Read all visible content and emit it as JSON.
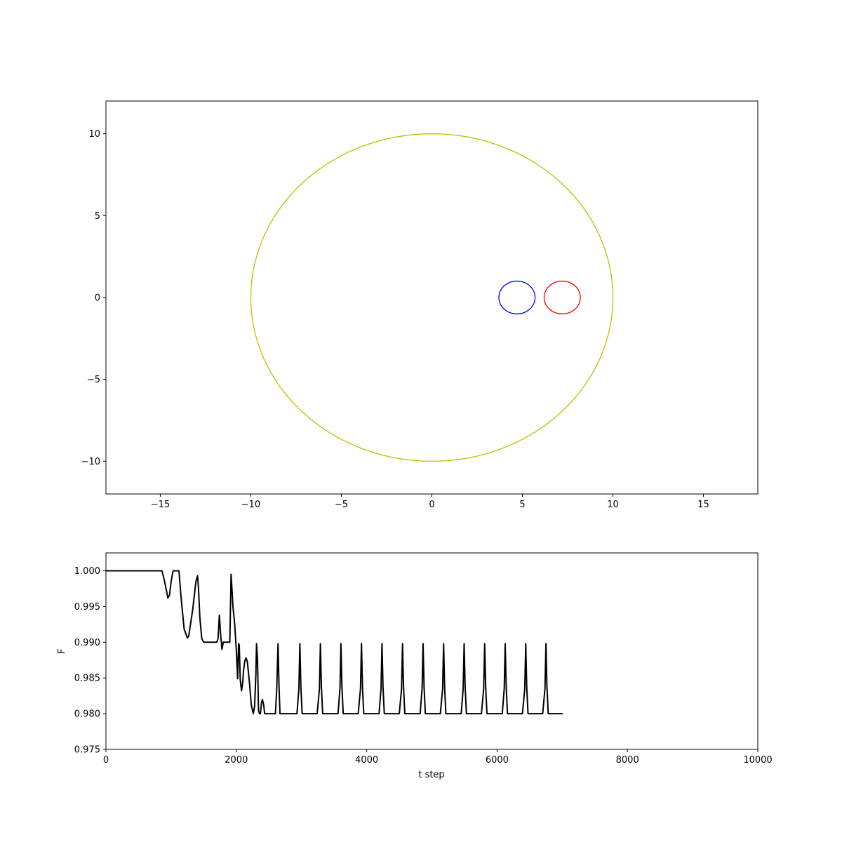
{
  "chart_data": [
    {
      "type": "line",
      "title": "",
      "xlabel": "",
      "ylabel": "",
      "xlim": [
        -18,
        18
      ],
      "ylim": [
        -12,
        12
      ],
      "aspect": "equal",
      "grid": false,
      "xticks": [
        -15,
        -10,
        -5,
        0,
        5,
        10,
        15
      ],
      "yticks": [
        -10,
        -5,
        0,
        5,
        10
      ],
      "xtick_labels": [
        "−15",
        "−10",
        "−5",
        "0",
        "5",
        "10",
        "15"
      ],
      "ytick_labels": [
        "−10",
        "−5",
        "0",
        "5",
        "10"
      ],
      "series": [
        {
          "shape": "circle",
          "cx": 0,
          "cy": 0,
          "r": 10,
          "color": "#bfbf00"
        },
        {
          "shape": "circle",
          "cx": 4.7,
          "cy": 0,
          "r": 1,
          "color": "#0000ff"
        },
        {
          "shape": "circle",
          "cx": 7.2,
          "cy": 0,
          "r": 1,
          "color": "#ff0000"
        }
      ]
    },
    {
      "type": "line",
      "title": "",
      "xlabel": "t step",
      "ylabel": "F",
      "xlim": [
        0,
        10000
      ],
      "ylim": [
        0.975,
        1.0025
      ],
      "grid": false,
      "xticks": [
        0,
        2000,
        4000,
        6000,
        8000,
        10000
      ],
      "yticks": [
        0.975,
        0.98,
        0.985,
        0.99,
        0.995,
        1.0
      ],
      "xtick_labels": [
        "0",
        "2000",
        "4000",
        "6000",
        "8000",
        "10000"
      ],
      "ytick_labels": [
        "0.975",
        "0.980",
        "0.985",
        "0.990",
        "0.995",
        "1.000"
      ],
      "series": [
        {
          "color": "#000000",
          "x": [
            0,
            860,
            900,
            950,
            975,
            1000,
            1030,
            1060,
            1120,
            1150,
            1200,
            1250,
            1270,
            1330,
            1380,
            1405,
            1420,
            1440,
            1470,
            1500,
            1700,
            1720,
            1740,
            1760,
            1780,
            1800,
            1900,
            1920,
            1950,
            1975,
            2000,
            2020,
            2035,
            2045,
            2060,
            2080,
            2100,
            2110,
            2130,
            2150,
            2170,
            2200,
            2230,
            2260,
            2280,
            2300,
            2310,
            2325,
            2340,
            2355,
            2370,
            2385,
            2400,
            2420,
            2435,
            2450,
            2470,
            2490,
            2520,
            2545,
            2570,
            2600,
            2620,
            2640,
            2655,
            2670,
            2690,
            2710,
            2740,
            2930,
            2960,
            2975,
            2990,
            3010,
            3050,
            3240,
            3275,
            3290,
            3305,
            3325,
            3365,
            3560,
            3590,
            3605,
            3620,
            3640,
            3680,
            3870,
            3905,
            3920,
            3935,
            3955,
            3995,
            4190,
            4220,
            4235,
            4250,
            4270,
            4310,
            4500,
            4535,
            4550,
            4565,
            4585,
            4625,
            4820,
            4850,
            4865,
            4880,
            4900,
            4940,
            5130,
            5165,
            5180,
            5195,
            5215,
            5255,
            5450,
            5480,
            5495,
            5510,
            5530,
            5570,
            5760,
            5795,
            5810,
            5825,
            5845,
            5885,
            6080,
            6110,
            6125,
            6140,
            6160,
            6200,
            6390,
            6425,
            6440,
            6455,
            6475,
            6515,
            6700,
            6735,
            6750,
            6765,
            6785,
            7000
          ],
          "y": [
            1.0,
            1.0,
            0.9985,
            0.9962,
            0.9966,
            0.9985,
            1.0,
            1.0,
            1.0,
            0.9965,
            0.9918,
            0.9906,
            0.9909,
            0.9945,
            0.9985,
            0.9993,
            0.9975,
            0.9935,
            0.9905,
            0.99,
            0.99,
            0.9905,
            0.9938,
            0.991,
            0.989,
            0.99,
            0.99,
            0.9995,
            0.9948,
            0.9925,
            0.9889,
            0.9849,
            0.9898,
            0.9896,
            0.9848,
            0.9832,
            0.9845,
            0.986,
            0.9874,
            0.9878,
            0.9872,
            0.9845,
            0.9812,
            0.98,
            0.981,
            0.9855,
            0.9898,
            0.9876,
            0.9805,
            0.98,
            0.98,
            0.9815,
            0.982,
            0.9812,
            0.98,
            0.98,
            0.98,
            0.98,
            0.98,
            0.98,
            0.98,
            0.98,
            0.9835,
            0.9898,
            0.9838,
            0.98,
            0.98,
            0.98,
            0.98,
            0.98,
            0.9835,
            0.9898,
            0.9838,
            0.98,
            0.98,
            0.98,
            0.9835,
            0.9898,
            0.9838,
            0.98,
            0.98,
            0.98,
            0.9835,
            0.9898,
            0.9838,
            0.98,
            0.98,
            0.98,
            0.9835,
            0.9898,
            0.9838,
            0.98,
            0.98,
            0.98,
            0.9835,
            0.9898,
            0.9838,
            0.98,
            0.98,
            0.98,
            0.9835,
            0.9898,
            0.9838,
            0.98,
            0.98,
            0.98,
            0.9835,
            0.9898,
            0.9838,
            0.98,
            0.98,
            0.98,
            0.9835,
            0.9898,
            0.9838,
            0.98,
            0.98,
            0.98,
            0.9835,
            0.9898,
            0.9838,
            0.98,
            0.98,
            0.98,
            0.9835,
            0.9898,
            0.9838,
            0.98,
            0.98,
            0.98,
            0.9835,
            0.9898,
            0.9838,
            0.98,
            0.98,
            0.98,
            0.9835,
            0.9898,
            0.9838,
            0.98,
            0.98,
            0.98,
            0.9835,
            0.9898,
            0.9838,
            0.98,
            0.98
          ]
        }
      ]
    }
  ]
}
